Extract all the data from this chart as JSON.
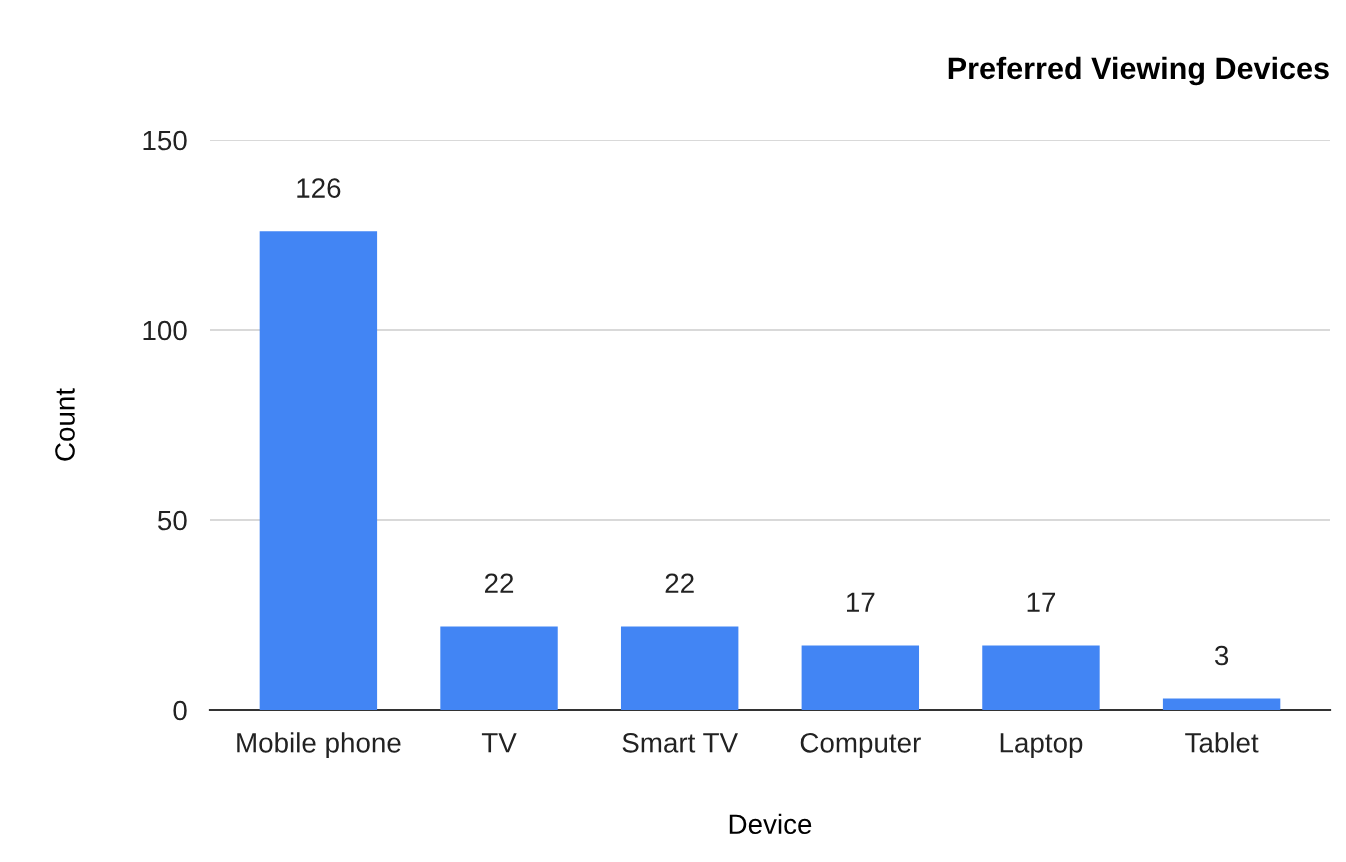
{
  "chart_data": {
    "type": "bar",
    "title": "Preferred Viewing Devices",
    "xlabel": "Device",
    "ylabel": "Count",
    "categories": [
      "Mobile phone",
      "TV",
      "Smart TV",
      "Computer",
      "Laptop",
      "Tablet"
    ],
    "values": [
      126,
      22,
      22,
      17,
      17,
      3
    ],
    "color": "#4285f4",
    "ylim": [
      0,
      150
    ],
    "yticks": [
      0,
      50,
      100,
      150
    ],
    "grid": "y",
    "data_labels": true
  }
}
